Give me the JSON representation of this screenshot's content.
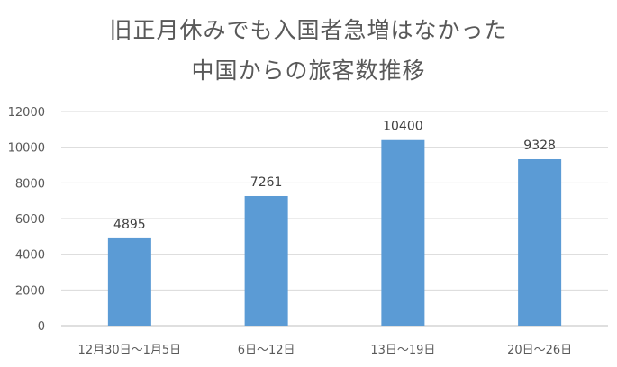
{
  "chart_data": {
    "type": "bar",
    "title": "旧正月休みでも入国者急増はなかった",
    "subtitle": "中国からの旅客数推移",
    "categories": [
      "12月30日～1月5日",
      "6日～12日",
      "13日～19日",
      "20日～26日"
    ],
    "values": [
      4895,
      7261,
      10400,
      9328
    ],
    "data_labels": [
      "4895",
      "7261",
      "10400",
      "9328"
    ],
    "y_ticks": [
      "0",
      "2000",
      "4000",
      "6000",
      "8000",
      "10000",
      "12000"
    ],
    "ylim": [
      0,
      12000
    ],
    "grid": true,
    "legend": "none",
    "colors": {
      "bar": "#5b9bd5",
      "grid": "#d9d9d9",
      "axis_text": "#595959",
      "label_text": "#404040",
      "title_text": "#595959"
    }
  }
}
